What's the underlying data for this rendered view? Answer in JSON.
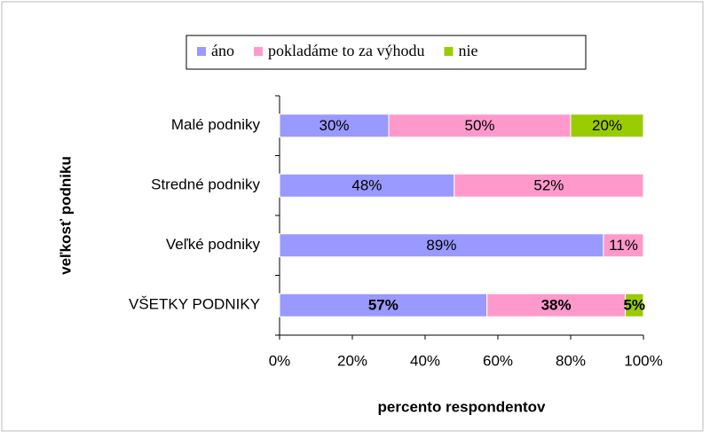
{
  "chart_data": {
    "type": "stacked_barh",
    "y_label": "veľkosť podniku",
    "x_label": "percento respondentov",
    "categories": [
      "Malé podniky",
      "Stredné podniky",
      "Veľké podniky",
      "VŠETKY PODNIKY"
    ],
    "series": [
      {
        "name": "áno",
        "color": "#9999ff",
        "values": [
          30,
          48,
          89,
          57
        ],
        "value_labels": [
          "30%",
          "48%",
          "89%",
          "57%"
        ]
      },
      {
        "name": "pokladáme to za výhodu",
        "color": "#ff99cc",
        "values": [
          50,
          52,
          11,
          38
        ],
        "value_labels": [
          "50%",
          "52%",
          "11%",
          "38%"
        ]
      },
      {
        "name": "nie",
        "color": "#99cc00",
        "values": [
          20,
          null,
          null,
          5
        ],
        "value_labels": [
          "20%",
          null,
          null,
          "5%"
        ]
      }
    ],
    "xlim": [
      0,
      100
    ],
    "xticks": [
      {
        "value": 0,
        "label": "0%"
      },
      {
        "value": 20,
        "label": "20%"
      },
      {
        "value": 40,
        "label": "40%"
      },
      {
        "value": 60,
        "label": "60%"
      },
      {
        "value": 80,
        "label": "80%"
      },
      {
        "value": 100,
        "label": "100%"
      }
    ],
    "legend": "top"
  }
}
